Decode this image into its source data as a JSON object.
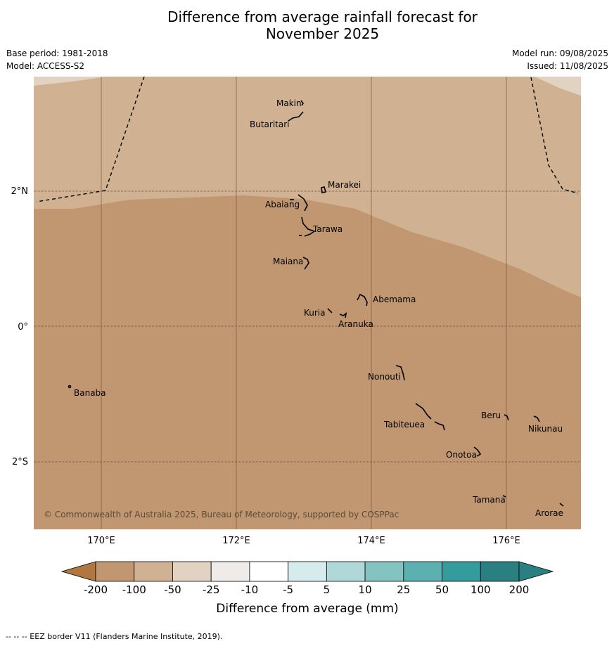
{
  "title": {
    "line1": "Difference from average rainfall forecast for",
    "line2": "November 2025"
  },
  "meta": {
    "base_period": "Base period: 1981-2018",
    "model": "Model: ACCESS-S2",
    "model_run": "Model run: 09/08/2025",
    "issued": "Issued: 11/08/2025"
  },
  "map": {
    "longitudes": [
      "170°E",
      "172°E",
      "174°E",
      "176°E"
    ],
    "latitudes": [
      "2°N",
      "0°",
      "2°S"
    ],
    "copyright": "© Commonwealth of Australia 2025, Bureau of Meteorology, supported by COSPPac",
    "islands": [
      "Makin",
      "Butaritari",
      "Marakei",
      "Abaiang",
      "Tarawa",
      "Maiana",
      "Abemama",
      "Kuria",
      "Aranuka",
      "Nonouti",
      "Banaba",
      "Tabiteuea",
      "Beru",
      "Nikunau",
      "Onotoa",
      "Tamana",
      "Arorae"
    ],
    "category_colors": {
      "lt_-100": "#c09770",
      "-50_-25": "#d0b293",
      "-25_-10": "#e2d2c1"
    }
  },
  "legend": {
    "ticks": [
      "-200",
      "-100",
      "-50",
      "-25",
      "-10",
      "-5",
      "5",
      "10",
      "25",
      "50",
      "100",
      "200"
    ],
    "colors": [
      "#b07840",
      "#c09770",
      "#d0b293",
      "#e2d2c1",
      "#efebe9",
      "#ffffff",
      "#d6ebeb",
      "#b0d8d8",
      "#85c3c3",
      "#5cb0b0",
      "#349c9c",
      "#2a8080"
    ],
    "label": "Difference from average (mm)"
  },
  "footnote": "--  --  -- EEZ border V11 (Flanders Marine Institute, 2019)."
}
